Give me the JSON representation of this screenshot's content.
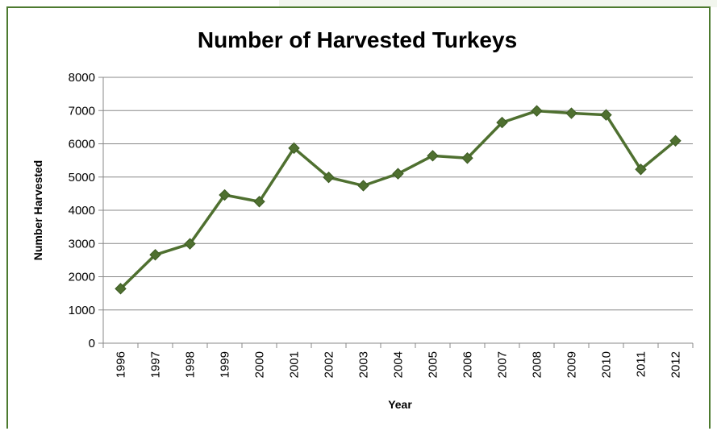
{
  "chart_data": {
    "type": "line",
    "title": "Number of Harvested Turkeys",
    "xlabel": "Year",
    "ylabel": "Number Harvested",
    "categories": [
      "1996",
      "1997",
      "1998",
      "1999",
      "2000",
      "2001",
      "2002",
      "2003",
      "2004",
      "2005",
      "2006",
      "2007",
      "2008",
      "2009",
      "2010",
      "2011",
      "2012"
    ],
    "series": [
      {
        "values": [
          1640,
          2660,
          2990,
          4460,
          4260,
          5870,
          4990,
          4740,
          5100,
          5640,
          5570,
          6640,
          6990,
          6920,
          6870,
          5230,
          6090
        ],
        "color": "#4f7030",
        "marker": "diamond"
      }
    ],
    "ylim": [
      0,
      8000
    ],
    "yticks": [
      0,
      1000,
      2000,
      3000,
      4000,
      5000,
      6000,
      7000,
      8000
    ],
    "grid": "horizontal",
    "legend": "none"
  },
  "colors": {
    "frame_border": "#4d7a2f",
    "line": "#4f7030",
    "marker_fill": "#4f7030",
    "marker_stroke": "#3b5a22",
    "grid": "#888888",
    "axis": "#888888"
  }
}
